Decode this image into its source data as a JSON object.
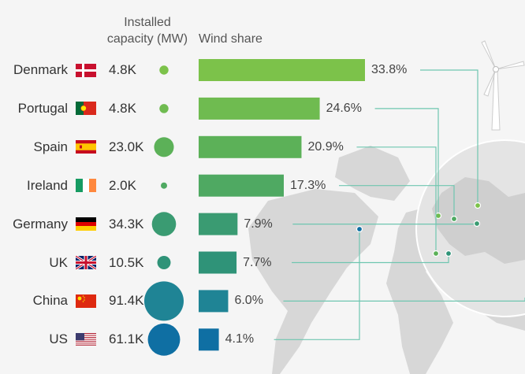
{
  "header": {
    "capacity_line1": "Installed",
    "capacity_line2": "capacity (MW)",
    "share_label": "Wind share"
  },
  "colors": {
    "bar_scale": [
      "#7cc24a",
      "#6fbb50",
      "#5cb158",
      "#4fa962",
      "#3a9b72",
      "#2f9378",
      "#1f8495",
      "#0f6fa3"
    ],
    "leader_line": "#6fc6b0",
    "map_land": "#d7d7d7",
    "background": "#f5f5f5"
  },
  "chart_data": {
    "type": "bar",
    "orientation": "horizontal",
    "categories": [
      "Denmark",
      "Portugal",
      "Spain",
      "Ireland",
      "Germany",
      "UK",
      "China",
      "US"
    ],
    "flag_icons": [
      "flag-denmark-icon",
      "flag-portugal-icon",
      "flag-spain-icon",
      "flag-ireland-icon",
      "flag-germany-icon",
      "flag-uk-icon",
      "flag-china-icon",
      "flag-us-icon"
    ],
    "series": [
      {
        "name": "Wind share",
        "values": [
          33.8,
          24.6,
          20.9,
          17.3,
          7.9,
          7.7,
          6.0,
          4.1
        ],
        "labels": [
          "33.8%",
          "24.6%",
          "20.9%",
          "17.3%",
          "7.9%",
          "7.7%",
          "6.0%",
          "4.1%"
        ]
      },
      {
        "name": "Installed capacity (MW)",
        "values": [
          4800,
          4800,
          23000,
          2000,
          34300,
          10500,
          91400,
          61100
        ],
        "labels": [
          "4.8K",
          "4.8K",
          "23.0K",
          "2.0K",
          "34.3K",
          "10.5K",
          "91.4K",
          "61.1K"
        ]
      }
    ],
    "xlim": [
      0,
      40
    ],
    "grid": false,
    "legend": "none"
  }
}
